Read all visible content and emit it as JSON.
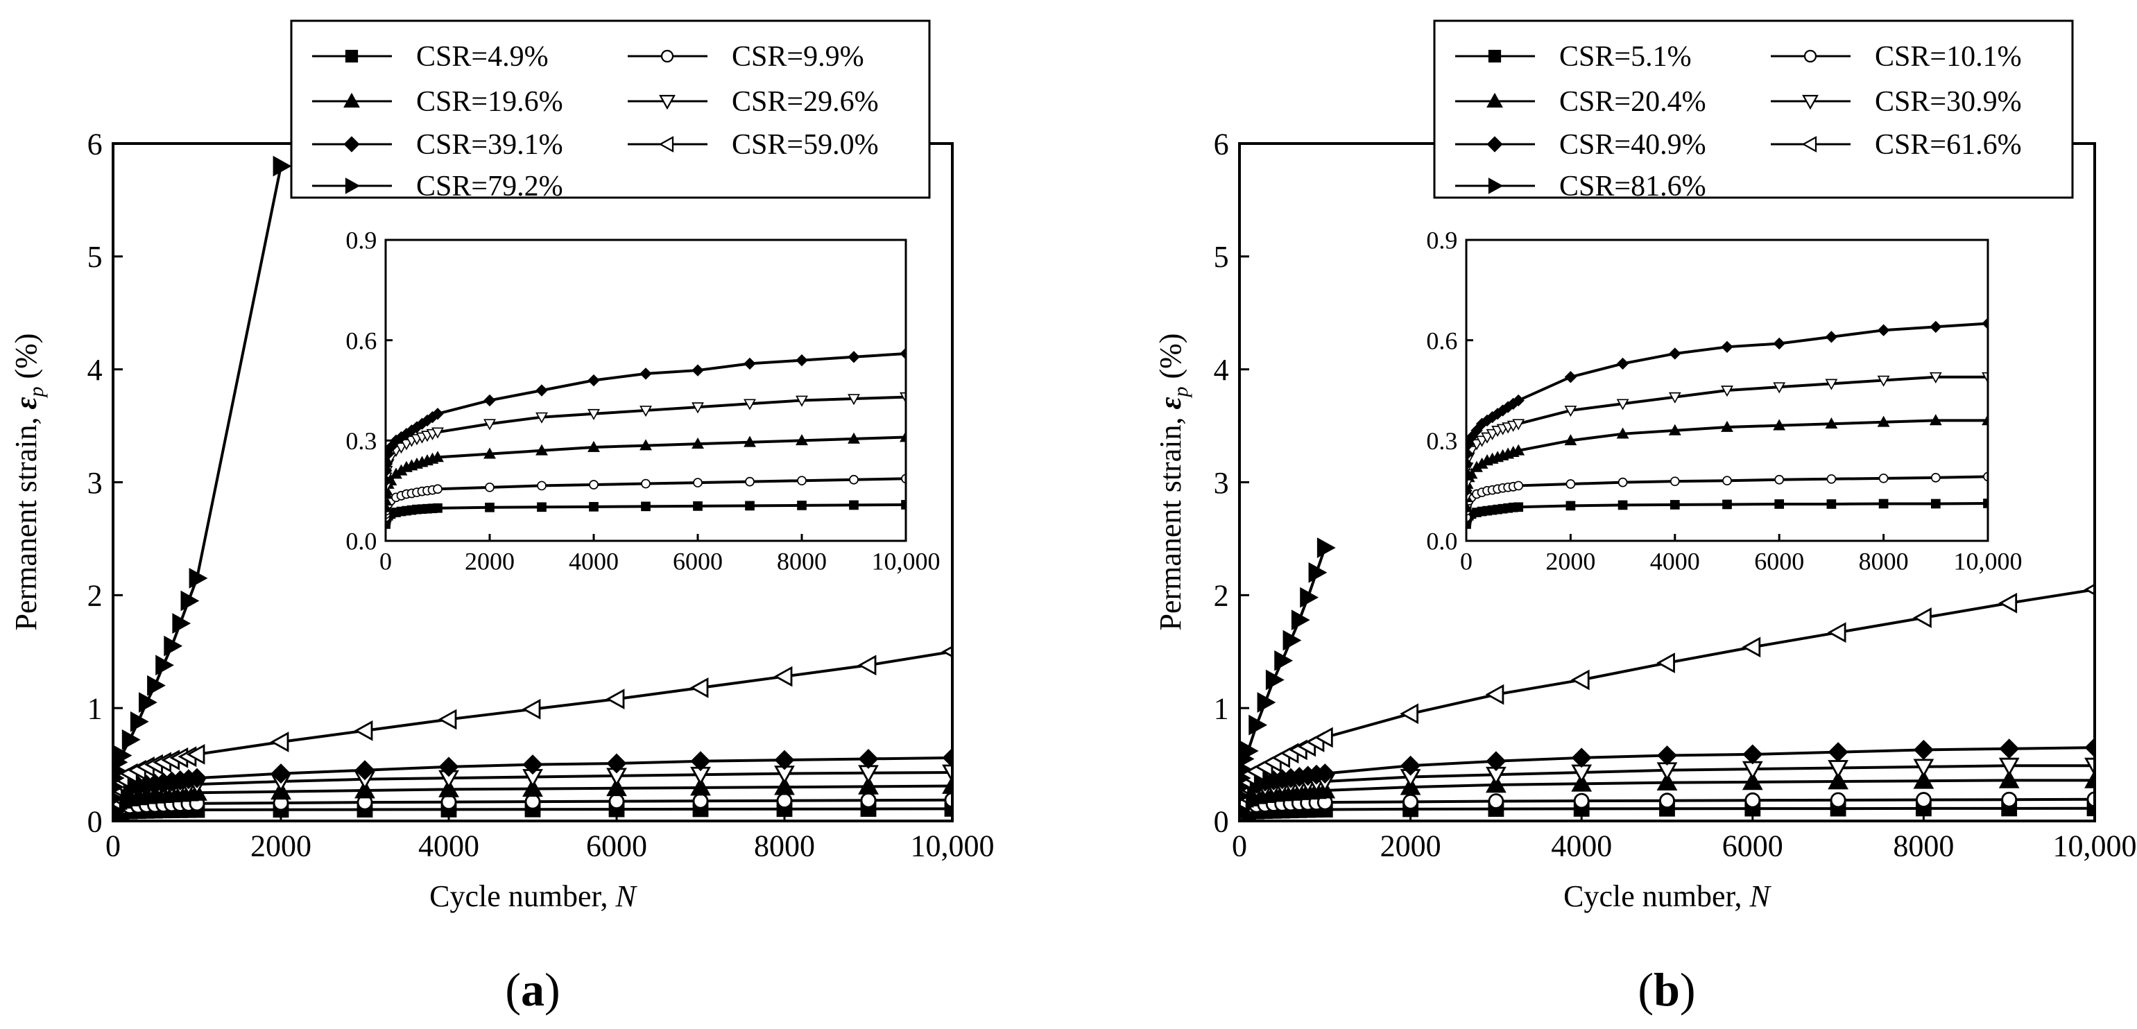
{
  "chart_data": [
    {
      "panel_label": "a",
      "type": "line",
      "xlabel": "Cycle number, ",
      "xlabel_var": "N",
      "ylabel": "Permanent strain, ",
      "ylabel_symbol": "ε",
      "ylabel_sub": "p",
      "ylabel_unit": " (%)",
      "xlim": [
        0,
        10000
      ],
      "ylim": [
        0,
        6
      ],
      "x_ticks": [
        0,
        2000,
        4000,
        6000,
        8000,
        10000
      ],
      "x_tick_labels": [
        "0",
        "2000",
        "4000",
        "6000",
        "8000",
        "10,000"
      ],
      "y_ticks": [
        0,
        1,
        2,
        3,
        4,
        5,
        6
      ],
      "y_tick_labels": [
        "0",
        "1",
        "2",
        "3",
        "4",
        "5",
        "6"
      ],
      "legend_location": "top-center",
      "series": [
        {
          "name": "CSR=4.9%",
          "marker": "square-filled",
          "x": [
            1,
            5,
            10,
            20,
            50,
            100,
            200,
            300,
            400,
            500,
            600,
            700,
            800,
            900,
            1000,
            2000,
            3000,
            4000,
            5000,
            6000,
            7000,
            8000,
            9000,
            10000
          ],
          "y": [
            0.05,
            0.06,
            0.065,
            0.07,
            0.075,
            0.08,
            0.085,
            0.088,
            0.09,
            0.092,
            0.094,
            0.095,
            0.096,
            0.097,
            0.098,
            0.1,
            0.101,
            0.102,
            0.103,
            0.104,
            0.105,
            0.106,
            0.107,
            0.108
          ]
        },
        {
          "name": "CSR=9.9%",
          "marker": "circle-open",
          "x": [
            1,
            5,
            10,
            20,
            50,
            100,
            200,
            300,
            400,
            500,
            600,
            700,
            800,
            900,
            1000,
            2000,
            3000,
            4000,
            5000,
            6000,
            7000,
            8000,
            9000,
            10000
          ],
          "y": [
            0.07,
            0.08,
            0.09,
            0.1,
            0.11,
            0.12,
            0.13,
            0.135,
            0.14,
            0.142,
            0.145,
            0.148,
            0.15,
            0.152,
            0.155,
            0.16,
            0.165,
            0.168,
            0.171,
            0.174,
            0.177,
            0.18,
            0.183,
            0.186
          ]
        },
        {
          "name": "CSR=19.6%",
          "marker": "triangle-up-filled",
          "x": [
            1,
            5,
            10,
            20,
            50,
            100,
            200,
            300,
            400,
            500,
            600,
            700,
            800,
            900,
            1000,
            2000,
            3000,
            4000,
            5000,
            6000,
            7000,
            8000,
            9000,
            10000
          ],
          "y": [
            0.1,
            0.12,
            0.14,
            0.15,
            0.17,
            0.18,
            0.2,
            0.21,
            0.22,
            0.225,
            0.23,
            0.235,
            0.24,
            0.245,
            0.25,
            0.26,
            0.27,
            0.28,
            0.285,
            0.29,
            0.295,
            0.3,
            0.305,
            0.31
          ]
        },
        {
          "name": "CSR=29.6%",
          "marker": "triangle-down-open",
          "x": [
            1,
            5,
            10,
            20,
            50,
            100,
            200,
            300,
            400,
            500,
            600,
            700,
            800,
            900,
            1000,
            2000,
            3000,
            4000,
            5000,
            6000,
            7000,
            8000,
            9000,
            10000
          ],
          "y": [
            0.13,
            0.16,
            0.19,
            0.21,
            0.23,
            0.25,
            0.27,
            0.28,
            0.29,
            0.3,
            0.305,
            0.31,
            0.315,
            0.32,
            0.325,
            0.35,
            0.37,
            0.38,
            0.39,
            0.4,
            0.41,
            0.42,
            0.425,
            0.43
          ]
        },
        {
          "name": "CSR=39.1%",
          "marker": "diamond-filled",
          "x": [
            1,
            5,
            10,
            20,
            50,
            100,
            200,
            300,
            400,
            500,
            600,
            700,
            800,
            900,
            1000,
            2000,
            3000,
            4000,
            5000,
            6000,
            7000,
            8000,
            9000,
            10000
          ],
          "y": [
            0.14,
            0.18,
            0.21,
            0.23,
            0.26,
            0.28,
            0.3,
            0.31,
            0.32,
            0.33,
            0.34,
            0.35,
            0.36,
            0.37,
            0.38,
            0.42,
            0.45,
            0.48,
            0.5,
            0.51,
            0.53,
            0.54,
            0.55,
            0.56
          ]
        },
        {
          "name": "CSR=59.0%",
          "marker": "triangle-left-open",
          "x": [
            1,
            5,
            10,
            20,
            50,
            100,
            200,
            300,
            400,
            500,
            600,
            700,
            800,
            900,
            1000,
            2000,
            3000,
            4000,
            5000,
            6000,
            7000,
            8000,
            9000,
            10000
          ],
          "y": [
            0.18,
            0.23,
            0.27,
            0.3,
            0.34,
            0.38,
            0.42,
            0.45,
            0.48,
            0.5,
            0.52,
            0.54,
            0.56,
            0.57,
            0.59,
            0.7,
            0.8,
            0.9,
            0.99,
            1.08,
            1.18,
            1.28,
            1.38,
            1.5
          ]
        },
        {
          "name": "CSR=79.2%",
          "marker": "triangle-right-filled",
          "x": [
            1,
            5,
            10,
            20,
            50,
            100,
            200,
            300,
            400,
            500,
            600,
            700,
            800,
            900,
            1000,
            2000
          ],
          "y": [
            0.2,
            0.3,
            0.38,
            0.45,
            0.52,
            0.58,
            0.72,
            0.88,
            1.05,
            1.2,
            1.38,
            1.55,
            1.75,
            1.95,
            2.15,
            5.8
          ]
        }
      ],
      "inset": {
        "xlim": [
          0,
          10000
        ],
        "ylim": [
          0,
          0.9
        ],
        "x_ticks": [
          0,
          2000,
          4000,
          6000,
          8000,
          10000
        ],
        "x_tick_labels": [
          "0",
          "2000",
          "4000",
          "6000",
          "8000",
          "10,000"
        ],
        "y_ticks": [
          0,
          0.3,
          0.6,
          0.9
        ],
        "y_tick_labels": [
          "0.0",
          "0.3",
          "0.6",
          "0.9"
        ],
        "series_indices": [
          0,
          1,
          2,
          3,
          4
        ]
      }
    },
    {
      "panel_label": "b",
      "type": "line",
      "xlabel": "Cycle number, ",
      "xlabel_var": "N",
      "ylabel": "Permanent strain, ",
      "ylabel_symbol": "ε",
      "ylabel_sub": "p",
      "ylabel_unit": " (%)",
      "xlim": [
        0,
        10000
      ],
      "ylim": [
        0,
        6
      ],
      "x_ticks": [
        0,
        2000,
        4000,
        6000,
        8000,
        10000
      ],
      "x_tick_labels": [
        "0",
        "2000",
        "4000",
        "6000",
        "8000",
        "10,000"
      ],
      "y_ticks": [
        0,
        1,
        2,
        3,
        4,
        5,
        6
      ],
      "y_tick_labels": [
        "0",
        "1",
        "2",
        "3",
        "4",
        "5",
        "6"
      ],
      "legend_location": "top-left",
      "series": [
        {
          "name": "CSR=5.1%",
          "marker": "square-filled",
          "x": [
            1,
            5,
            10,
            20,
            50,
            100,
            200,
            300,
            400,
            500,
            600,
            700,
            800,
            900,
            1000,
            2000,
            3000,
            4000,
            5000,
            6000,
            7000,
            8000,
            9000,
            10000
          ],
          "y": [
            0.05,
            0.06,
            0.065,
            0.07,
            0.075,
            0.08,
            0.085,
            0.088,
            0.09,
            0.092,
            0.094,
            0.096,
            0.098,
            0.1,
            0.101,
            0.105,
            0.107,
            0.108,
            0.109,
            0.11,
            0.11,
            0.111,
            0.111,
            0.112
          ]
        },
        {
          "name": "CSR=10.1%",
          "marker": "circle-open",
          "x": [
            1,
            5,
            10,
            20,
            50,
            100,
            200,
            300,
            400,
            500,
            600,
            700,
            800,
            900,
            1000,
            2000,
            3000,
            4000,
            5000,
            6000,
            7000,
            8000,
            9000,
            10000
          ],
          "y": [
            0.07,
            0.09,
            0.1,
            0.11,
            0.12,
            0.13,
            0.14,
            0.145,
            0.15,
            0.152,
            0.155,
            0.158,
            0.16,
            0.162,
            0.165,
            0.17,
            0.175,
            0.178,
            0.18,
            0.183,
            0.185,
            0.187,
            0.189,
            0.192
          ]
        },
        {
          "name": "CSR=20.4%",
          "marker": "triangle-up-filled",
          "x": [
            1,
            5,
            10,
            20,
            50,
            100,
            200,
            300,
            400,
            500,
            600,
            700,
            800,
            900,
            1000,
            2000,
            3000,
            4000,
            5000,
            6000,
            7000,
            8000,
            9000,
            10000
          ],
          "y": [
            0.1,
            0.13,
            0.15,
            0.17,
            0.19,
            0.2,
            0.22,
            0.23,
            0.24,
            0.245,
            0.25,
            0.255,
            0.26,
            0.265,
            0.27,
            0.3,
            0.32,
            0.33,
            0.34,
            0.345,
            0.35,
            0.355,
            0.36,
            0.36
          ]
        },
        {
          "name": "CSR=30.9%",
          "marker": "triangle-down-open",
          "x": [
            1,
            5,
            10,
            20,
            50,
            100,
            200,
            300,
            400,
            500,
            600,
            700,
            800,
            900,
            1000,
            2000,
            3000,
            4000,
            5000,
            6000,
            7000,
            8000,
            9000,
            10000
          ],
          "y": [
            0.13,
            0.17,
            0.2,
            0.22,
            0.25,
            0.27,
            0.29,
            0.3,
            0.31,
            0.32,
            0.33,
            0.335,
            0.34,
            0.345,
            0.35,
            0.39,
            0.41,
            0.43,
            0.45,
            0.46,
            0.47,
            0.48,
            0.49,
            0.49
          ]
        },
        {
          "name": "CSR=40.9%",
          "marker": "diamond-filled",
          "x": [
            1,
            5,
            10,
            20,
            50,
            100,
            200,
            300,
            400,
            500,
            600,
            700,
            800,
            900,
            1000,
            2000,
            3000,
            4000,
            5000,
            6000,
            7000,
            8000,
            9000,
            10000
          ],
          "y": [
            0.15,
            0.2,
            0.23,
            0.26,
            0.29,
            0.31,
            0.33,
            0.35,
            0.36,
            0.37,
            0.38,
            0.39,
            0.4,
            0.41,
            0.42,
            0.49,
            0.53,
            0.56,
            0.58,
            0.59,
            0.61,
            0.63,
            0.64,
            0.65
          ]
        },
        {
          "name": "CSR=61.6%",
          "marker": "triangle-left-open",
          "x": [
            1,
            5,
            10,
            20,
            50,
            100,
            200,
            300,
            400,
            500,
            600,
            700,
            800,
            900,
            1000,
            2000,
            3000,
            4000,
            5000,
            6000,
            7000,
            8000,
            9000,
            10000
          ],
          "y": [
            0.18,
            0.24,
            0.28,
            0.32,
            0.36,
            0.4,
            0.44,
            0.48,
            0.52,
            0.56,
            0.6,
            0.63,
            0.66,
            0.7,
            0.74,
            0.95,
            1.12,
            1.25,
            1.4,
            1.54,
            1.67,
            1.8,
            1.93,
            2.05
          ]
        },
        {
          "name": "CSR=81.6%",
          "marker": "triangle-right-filled",
          "x": [
            1,
            5,
            10,
            20,
            50,
            100,
            200,
            300,
            400,
            500,
            600,
            700,
            800,
            900,
            1000
          ],
          "y": [
            0.22,
            0.3,
            0.38,
            0.46,
            0.55,
            0.62,
            0.85,
            1.05,
            1.25,
            1.42,
            1.6,
            1.78,
            1.98,
            2.2,
            2.42
          ]
        }
      ],
      "inset": {
        "xlim": [
          0,
          10000
        ],
        "ylim": [
          0,
          0.9
        ],
        "x_ticks": [
          0,
          2000,
          4000,
          6000,
          8000,
          10000
        ],
        "x_tick_labels": [
          "0",
          "2000",
          "4000",
          "6000",
          "8000",
          "10,000"
        ],
        "y_ticks": [
          0,
          0.3,
          0.6,
          0.9
        ],
        "y_tick_labels": [
          "0.0",
          "0.3",
          "0.6",
          "0.9"
        ],
        "series_indices": [
          0,
          1,
          2,
          3,
          4
        ]
      }
    }
  ]
}
